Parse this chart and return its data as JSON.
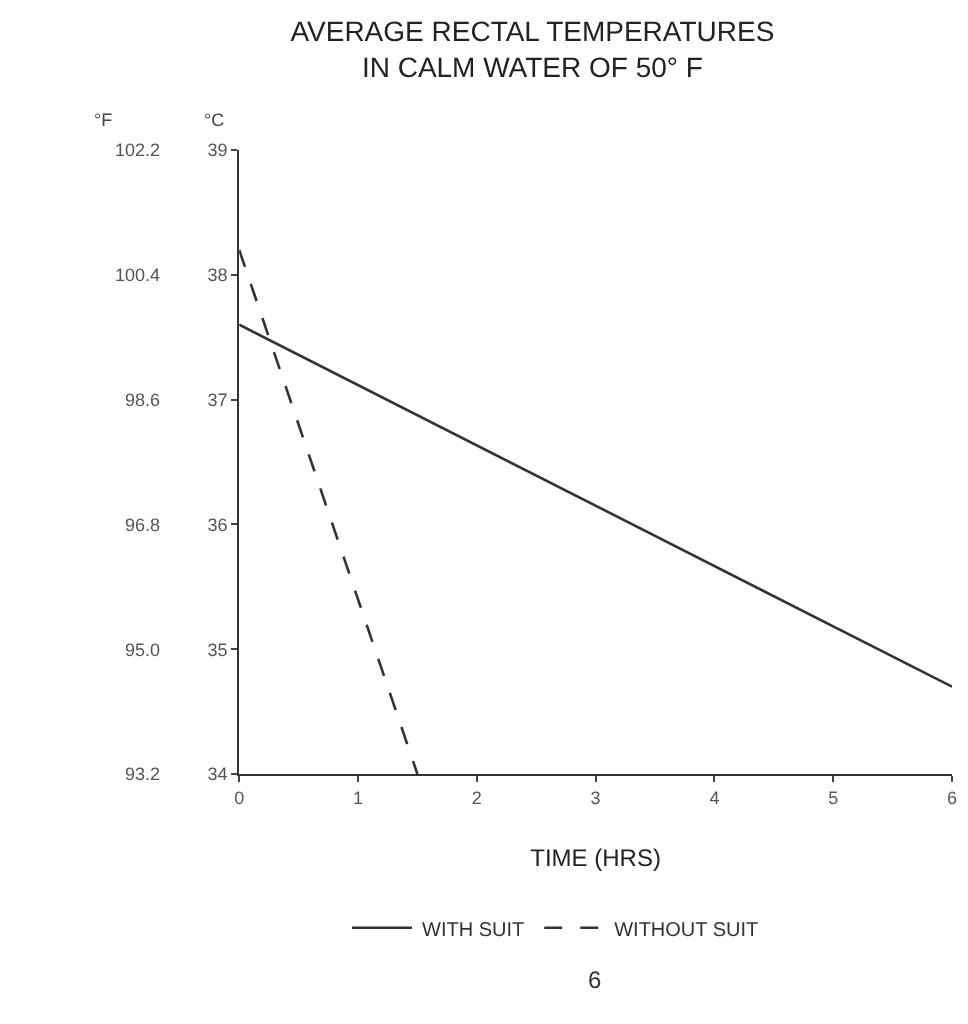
{
  "chart_data": {
    "type": "line",
    "title": "AVERAGE RECTAL TEMPERATURES\nIN CALM WATER OF 50° F",
    "xlabel": "TIME (HRS)",
    "ylabel": "°C",
    "y2label": "°F",
    "series": [
      {
        "name": "WITH SUIT",
        "color": "#333333",
        "x": [
          0,
          6
        ],
        "values": [
          37.6,
          34.7
        ],
        "line_style": "solid"
      },
      {
        "name": "WITHOUT SUIT",
        "color": "#333333",
        "x": [
          0,
          1.5
        ],
        "values": [
          38.2,
          34
        ],
        "line_style": "dashed"
      }
    ],
    "xlim": [
      0,
      6
    ],
    "xticks": [
      0,
      1,
      2,
      3,
      4,
      5,
      6
    ],
    "ylim": [
      34,
      39
    ],
    "yticks": [
      34,
      35,
      36,
      37,
      38,
      39
    ],
    "y2lim": [
      93.2,
      102.2
    ],
    "y2ticks": [
      93.2,
      {
        "value": 95,
        "label": "95.0"
      },
      96.8,
      98.6,
      100.4,
      102.2
    ],
    "legend": "bottom",
    "grid": false,
    "marker": "none",
    "annotations": [
      "6"
    ]
  }
}
